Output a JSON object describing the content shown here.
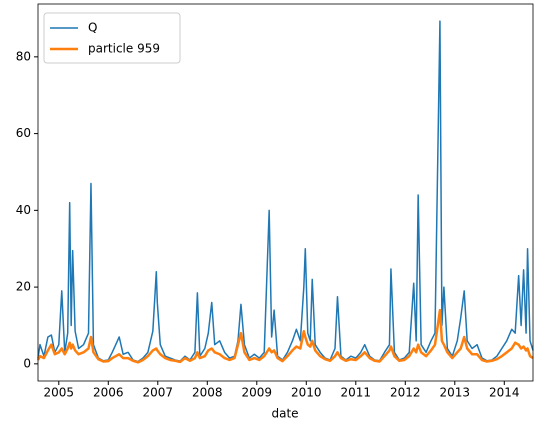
{
  "chart_data": {
    "type": "line",
    "xlabel": "date",
    "x": [
      2004.58,
      2004.62,
      2004.7,
      2004.78,
      2004.85,
      2004.92,
      2005.0,
      2005.06,
      2005.12,
      2005.18,
      2005.22,
      2005.25,
      2005.28,
      2005.33,
      2005.4,
      2005.5,
      2005.6,
      2005.65,
      2005.7,
      2005.8,
      2005.9,
      2006.0,
      2006.08,
      2006.15,
      2006.22,
      2006.3,
      2006.4,
      2006.5,
      2006.6,
      2006.7,
      2006.8,
      2006.9,
      2006.97,
      2006.99,
      2007.05,
      2007.15,
      2007.25,
      2007.35,
      2007.45,
      2007.55,
      2007.65,
      2007.75,
      2007.8,
      2007.85,
      2007.95,
      2008.02,
      2008.09,
      2008.15,
      2008.25,
      2008.35,
      2008.45,
      2008.55,
      2008.62,
      2008.68,
      2008.75,
      2008.85,
      2008.95,
      2009.05,
      2009.15,
      2009.25,
      2009.3,
      2009.35,
      2009.42,
      2009.52,
      2009.62,
      2009.72,
      2009.8,
      2009.88,
      2009.95,
      2009.98,
      2010.03,
      2010.08,
      2010.12,
      2010.18,
      2010.28,
      2010.38,
      2010.48,
      2010.58,
      2010.63,
      2010.7,
      2010.8,
      2010.9,
      2011.0,
      2011.1,
      2011.18,
      2011.28,
      2011.38,
      2011.48,
      2011.58,
      2011.68,
      2011.71,
      2011.78,
      2011.88,
      2011.98,
      2012.08,
      2012.17,
      2012.22,
      2012.26,
      2012.32,
      2012.42,
      2012.52,
      2012.6,
      2012.7,
      2012.74,
      2012.78,
      2012.85,
      2012.95,
      2013.05,
      2013.12,
      2013.19,
      2013.25,
      2013.35,
      2013.45,
      2013.55,
      2013.65,
      2013.75,
      2013.85,
      2013.95,
      2014.05,
      2014.15,
      2014.22,
      2014.29,
      2014.34,
      2014.39,
      2014.44,
      2014.47,
      2014.52,
      2014.58
    ],
    "series": [
      {
        "name": "Q",
        "color": "#1f77b4",
        "width": 1.5,
        "values": [
          1.5,
          5,
          2,
          7,
          7.5,
          3,
          5,
          19,
          3,
          8,
          42,
          10,
          29.5,
          8.5,
          4,
          5,
          8,
          47,
          5,
          1.5,
          0.8,
          1,
          3,
          5,
          7,
          2.5,
          3,
          1,
          0.6,
          1.5,
          3,
          8.5,
          24,
          16,
          5,
          2,
          1.5,
          1,
          0.7,
          2,
          1,
          3,
          18.5,
          2,
          4,
          8,
          16,
          5,
          6,
          3,
          1.5,
          2,
          6,
          15.5,
          5,
          1.5,
          2.5,
          1.5,
          3,
          40,
          7,
          14,
          2,
          1,
          3,
          6,
          9,
          6,
          20,
          30,
          8,
          6,
          22,
          5,
          3,
          1.5,
          1,
          4,
          17.5,
          2,
          1,
          2,
          1.5,
          3,
          5,
          2,
          1,
          0.8,
          3,
          5,
          24.7,
          3,
          1,
          1.5,
          3,
          21,
          6,
          44,
          5,
          3,
          6,
          8,
          89.3,
          10,
          20,
          4,
          2,
          6,
          12,
          19,
          6,
          4,
          5,
          1.5,
          0.8,
          1,
          2,
          4,
          6,
          9,
          8,
          23,
          10,
          24.5,
          8,
          30,
          6,
          3.5
        ]
      },
      {
        "name": "particle 959",
        "color": "#ff7f0e",
        "width": 2.5,
        "values": [
          1.0,
          2,
          1.5,
          3.5,
          5,
          2.5,
          3,
          4,
          2.5,
          4,
          5.5,
          4,
          5,
          3.5,
          2.5,
          3,
          4,
          7,
          3,
          1.2,
          0.6,
          0.7,
          1.5,
          2,
          2.5,
          1.5,
          1.5,
          0.8,
          0.4,
          1,
          2,
          3.5,
          4,
          3.5,
          2.5,
          1.5,
          1,
          0.8,
          0.5,
          1.5,
          0.8,
          1.5,
          3,
          1.5,
          2,
          3.5,
          4,
          3,
          2.5,
          1.5,
          1,
          1.5,
          5,
          8,
          3,
          1,
          1.5,
          1,
          2,
          4,
          3,
          3.5,
          1.5,
          0.7,
          2,
          3.5,
          4.5,
          4,
          8.5,
          7,
          5,
          4.5,
          6,
          3.5,
          2,
          1.2,
          0.8,
          2,
          3,
          1.5,
          0.8,
          1.2,
          1,
          2,
          3,
          1.5,
          0.8,
          0.6,
          2,
          3.5,
          4.5,
          2,
          0.8,
          1,
          2,
          4,
          3,
          5,
          3,
          2,
          3.5,
          5,
          14,
          6,
          5,
          3,
          1.5,
          3,
          4,
          7,
          4,
          2.5,
          2.5,
          1,
          0.6,
          0.8,
          1.2,
          2,
          3,
          4,
          5.5,
          5,
          4,
          4.5,
          3.5,
          4,
          2,
          1.5
        ]
      }
    ],
    "xlim": [
      2004.58,
      2014.58
    ],
    "xticks": [
      2005,
      2006,
      2007,
      2008,
      2009,
      2010,
      2011,
      2012,
      2013,
      2014
    ],
    "ylim": [
      -4.47,
      93.77
    ],
    "yticks": [
      0,
      20,
      40,
      60,
      80
    ],
    "legend": "upper left"
  }
}
